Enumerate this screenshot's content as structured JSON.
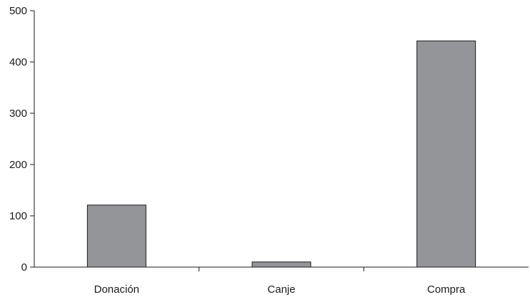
{
  "chart_data": {
    "type": "bar",
    "categories": [
      "Donación",
      "Canje",
      "Compra"
    ],
    "values": [
      121,
      10,
      441
    ],
    "title": "",
    "xlabel": "",
    "ylabel": "",
    "ylim": [
      0,
      500
    ],
    "yticks": [
      "0",
      "100",
      "200",
      "300",
      "400",
      "500"
    ],
    "grid": false,
    "legend": "none",
    "bar_color": "#939598",
    "bar_edge_color": "#1a1a1a",
    "axis_color": "#1a1a1a"
  }
}
